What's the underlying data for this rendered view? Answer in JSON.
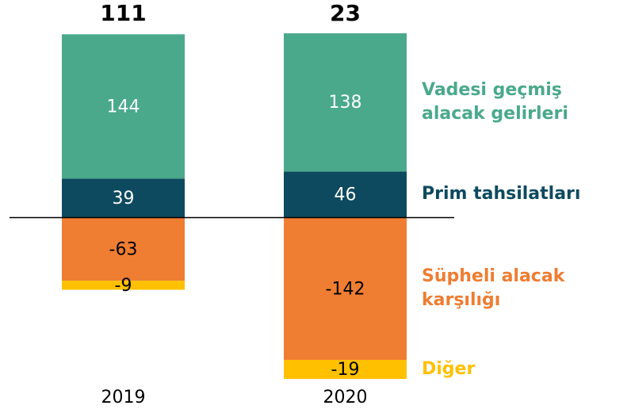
{
  "chart_data": {
    "type": "stacked-bar",
    "categories": [
      "2019",
      "2020"
    ],
    "totals": [
      111,
      23
    ],
    "series": [
      {
        "name": "Prim tahsilatları",
        "color": "#0e4a5f",
        "label_color": "#ffffff",
        "values": [
          39,
          46
        ]
      },
      {
        "name": "Vadesi geçmiş alacak gelirleri",
        "color": "#4aa98b",
        "label_color": "#ffffff",
        "values": [
          144,
          138
        ]
      },
      {
        "name": "Süpheli alacak karşılığı",
        "color": "#ef7d32",
        "label_color": "#000000",
        "values": [
          -63,
          -142
        ]
      },
      {
        "name": "Diğer",
        "color": "#ffc000",
        "label_color": "#000000",
        "values": [
          -9,
          -19
        ]
      }
    ]
  }
}
